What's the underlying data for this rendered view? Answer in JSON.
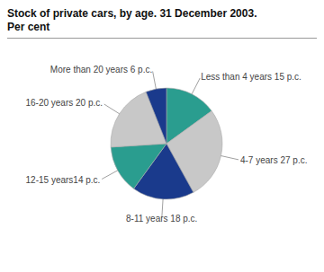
{
  "chart_data": {
    "type": "pie",
    "title": "Stock of private cars, by age. 31 December 2003.",
    "subtitle": "Per cent",
    "categories": [
      "Less than 4 years 15 p.c.",
      "4-7 years 27 p.c.",
      "8-11 years 18 p.c.",
      "12-15 years14 p.c.",
      "16-20 years 20 p.c.",
      "More than 20 years 6 p.c."
    ],
    "values": [
      15,
      27,
      18,
      14,
      20,
      6
    ],
    "colors": [
      "#2a9d8f",
      "#c8c8c8",
      "#1a3a8c",
      "#2a9d8f",
      "#c8c8c8",
      "#1a3a8c"
    ]
  }
}
